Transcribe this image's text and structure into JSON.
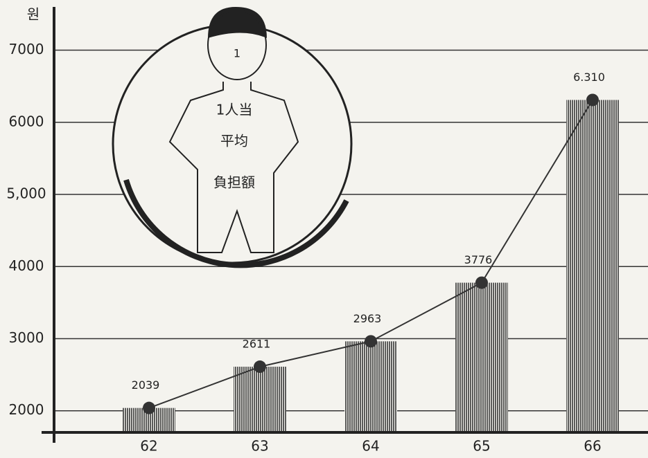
{
  "chart_data": {
    "type": "bar-line",
    "unit": "원",
    "categories": [
      "62",
      "63",
      "64",
      "65",
      "66"
    ],
    "values": [
      2039,
      2611,
      2963,
      3776,
      6310
    ],
    "value_labels": [
      "2039",
      "2611",
      "2963",
      "3776",
      "6.310"
    ],
    "ylim": [
      1700,
      7600
    ],
    "yticks": [
      2000,
      3000,
      4000,
      {
        "value": 5000,
        "label": "5,000"
      },
      6000,
      7000
    ],
    "grid": true,
    "color": "#333333",
    "illustration_text": [
      "1",
      "1人当",
      "平均",
      "負担額"
    ]
  }
}
